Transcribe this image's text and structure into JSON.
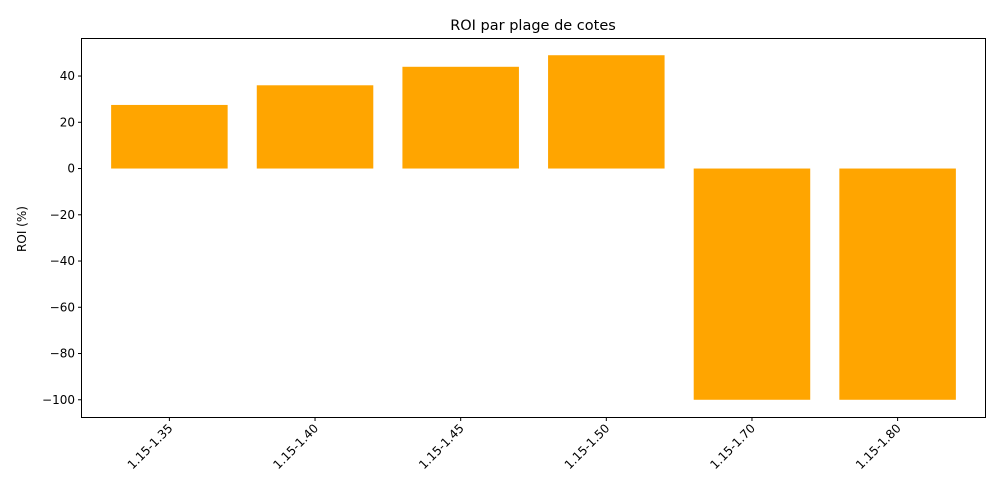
{
  "chart_data": {
    "type": "bar",
    "title": "ROI par plage de cotes",
    "xlabel": "",
    "ylabel": "ROI (%)",
    "categories": [
      "1.15-1.35",
      "1.15-1.40",
      "1.15-1.45",
      "1.15-1.50",
      "1.15-1.70",
      "1.15-1.80"
    ],
    "values": [
      27.5,
      36,
      44,
      49,
      -100,
      -100
    ],
    "ylim": [
      -107.45,
      56.45
    ],
    "yticks": [
      40,
      20,
      0,
      -20,
      -40,
      -60,
      -80,
      -100
    ],
    "ytick_labels": [
      "40",
      "20",
      "0",
      "−20",
      "−40",
      "−60",
      "−80",
      "−100"
    ],
    "bar_color": "#ffa500",
    "grid": false,
    "legend": "none"
  }
}
